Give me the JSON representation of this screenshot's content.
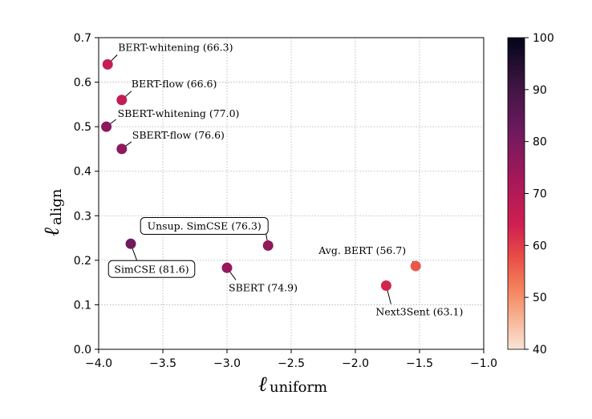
{
  "chart_data": {
    "type": "scatter",
    "xlabel": "ℓ",
    "xlabel_sub": "uniform",
    "ylabel": "ℓ",
    "ylabel_sub": "align",
    "xlim": [
      -4.0,
      -1.0
    ],
    "ylim": [
      0.0,
      0.7
    ],
    "xticks": [
      "−4.0",
      "−3.5",
      "−3.0",
      "−2.5",
      "−2.0",
      "−1.5",
      "−1.0"
    ],
    "yticks": [
      "0.0",
      "0.1",
      "0.2",
      "0.3",
      "0.4",
      "0.5",
      "0.6",
      "0.7"
    ],
    "grid": true,
    "colorbar": {
      "range": [
        40,
        100
      ],
      "ticks": [
        "40",
        "50",
        "60",
        "70",
        "80",
        "90",
        "100"
      ],
      "colormap": "rocket_r"
    },
    "points": [
      {
        "label": "BERT-whitening (66.3)",
        "x": -3.93,
        "y": 0.64,
        "score": 66.3,
        "boxed": false
      },
      {
        "label": "BERT-flow (66.6)",
        "x": -3.82,
        "y": 0.56,
        "score": 66.6,
        "boxed": false
      },
      {
        "label": "SBERT-whitening (77.0)",
        "x": -3.94,
        "y": 0.5,
        "score": 77.0,
        "boxed": false
      },
      {
        "label": "SBERT-flow (76.6)",
        "x": -3.82,
        "y": 0.45,
        "score": 76.6,
        "boxed": false
      },
      {
        "label": "Unsup. SimCSE (76.3)",
        "x": -2.68,
        "y": 0.233,
        "score": 76.3,
        "boxed": true
      },
      {
        "label": "SimCSE (81.6)",
        "x": -3.75,
        "y": 0.237,
        "score": 81.6,
        "boxed": true
      },
      {
        "label": "SBERT (74.9)",
        "x": -3.0,
        "y": 0.183,
        "score": 74.9,
        "boxed": false
      },
      {
        "label": "Avg. BERT (56.7)",
        "x": -1.53,
        "y": 0.187,
        "score": 56.7,
        "boxed": false
      },
      {
        "label": "Next3Sent (63.1)",
        "x": -1.76,
        "y": 0.143,
        "score": 63.1,
        "boxed": false
      }
    ]
  }
}
